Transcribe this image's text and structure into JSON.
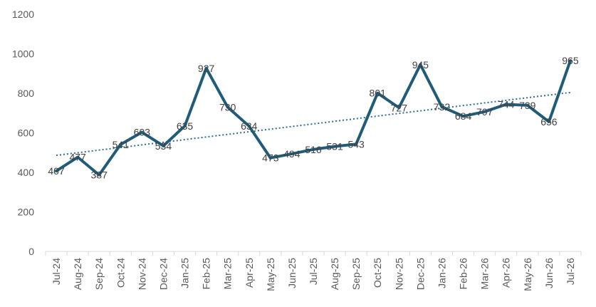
{
  "chart_data": {
    "type": "line",
    "categories": [
      "Jul-24",
      "Aug-24",
      "Sep-24",
      "Oct-24",
      "Nov-24",
      "Dec-24",
      "Jan-25",
      "Feb-25",
      "Mar-25",
      "Apr-25",
      "May-25",
      "Jun-25",
      "Jul-25",
      "Aug-25",
      "Sep-25",
      "Oct-25",
      "Nov-25",
      "Dec-25",
      "Jan-26",
      "Feb-26",
      "Mar-26",
      "Apr-26",
      "May-26",
      "Jun-26",
      "Jul-26"
    ],
    "values": [
      407,
      477,
      387,
      541,
      603,
      534,
      635,
      927,
      730,
      634,
      473,
      494,
      516,
      531,
      543,
      801,
      727,
      945,
      732,
      684,
      707,
      744,
      739,
      656,
      965
    ],
    "title": "",
    "xlabel": "",
    "ylabel": "",
    "ylim": [
      0,
      1200
    ],
    "yticks": [
      0,
      200,
      400,
      600,
      800,
      1000,
      1200
    ],
    "trendline": "linear",
    "grid": false,
    "legend": "none",
    "colors": {
      "line": "#1f5c7a",
      "trend": "#2a6f91",
      "axis": "#d9d9d9"
    }
  }
}
